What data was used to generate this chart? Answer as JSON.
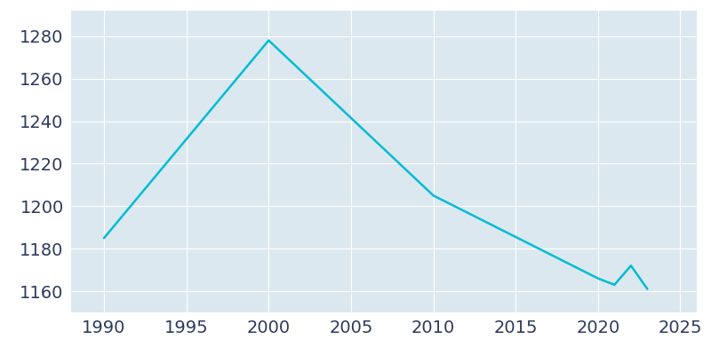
{
  "years": [
    1990,
    2000,
    2010,
    2020,
    2021,
    2022,
    2023
  ],
  "population": [
    1185,
    1278,
    1205,
    1166,
    1163,
    1172,
    1161
  ],
  "line_color": "#00BCD4",
  "background_color": "#dce8f0",
  "fig_background": "#ffffff",
  "grid_color": "#ffffff",
  "tick_color": "#2d3a5c",
  "xlim": [
    1988,
    2026
  ],
  "ylim": [
    1150,
    1292
  ],
  "xticks": [
    1990,
    1995,
    2000,
    2005,
    2010,
    2015,
    2020,
    2025
  ],
  "yticks": [
    1160,
    1180,
    1200,
    1220,
    1240,
    1260,
    1280
  ],
  "line_width": 1.8,
  "tick_fontsize": 14
}
